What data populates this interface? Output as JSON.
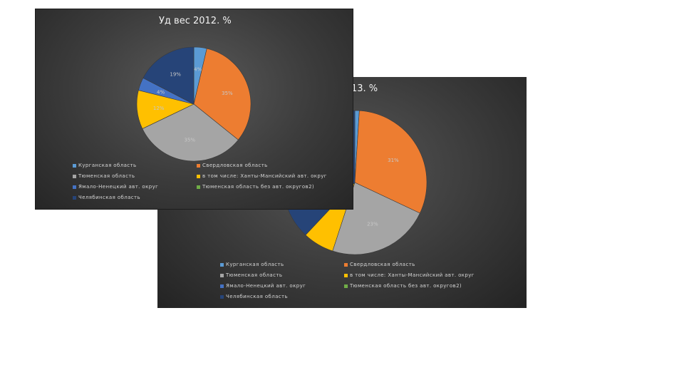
{
  "chart_data": [
    {
      "type": "pie",
      "title": "Уд вес 2012. %",
      "categories": [
        "Курганская область",
        "Свердловская область",
        "Тюменская область",
        "в том числе: Ханты-Мансийский авт. округ",
        "Ямало-Ненецкий авт. округ",
        "Тюменская область без авт. округов2)",
        "Челябинская область"
      ],
      "values": [
        4,
        35,
        35,
        12,
        4,
        0,
        19
      ],
      "data_labels": [
        "4%",
        "35%",
        "35%",
        "12%",
        "4%",
        "",
        "19%"
      ],
      "colors": [
        "#5b9bd5",
        "#ed7d31",
        "#a5a5a5",
        "#ffc000",
        "#4472c4",
        "#70ad47",
        "#264478"
      ],
      "legend_position": "bottom"
    },
    {
      "type": "pie",
      "title": "13. %",
      "categories": [
        "Курганская область",
        "Свердловская область",
        "Тюменская область",
        "в том числе: Ханты-Мансийский авт. округ",
        "Ямало-Ненецкий авт. округ",
        "Тюменская область без авт. округов2)",
        "Челябинская область"
      ],
      "values": [
        1,
        31,
        23,
        7,
        0,
        0,
        38
      ],
      "data_labels": [
        "",
        "31%",
        "23%",
        "",
        "",
        "",
        ""
      ],
      "colors": [
        "#5b9bd5",
        "#ed7d31",
        "#a5a5a5",
        "#ffc000",
        "#4472c4",
        "#70ad47",
        "#264478"
      ],
      "legend_position": "bottom"
    }
  ]
}
